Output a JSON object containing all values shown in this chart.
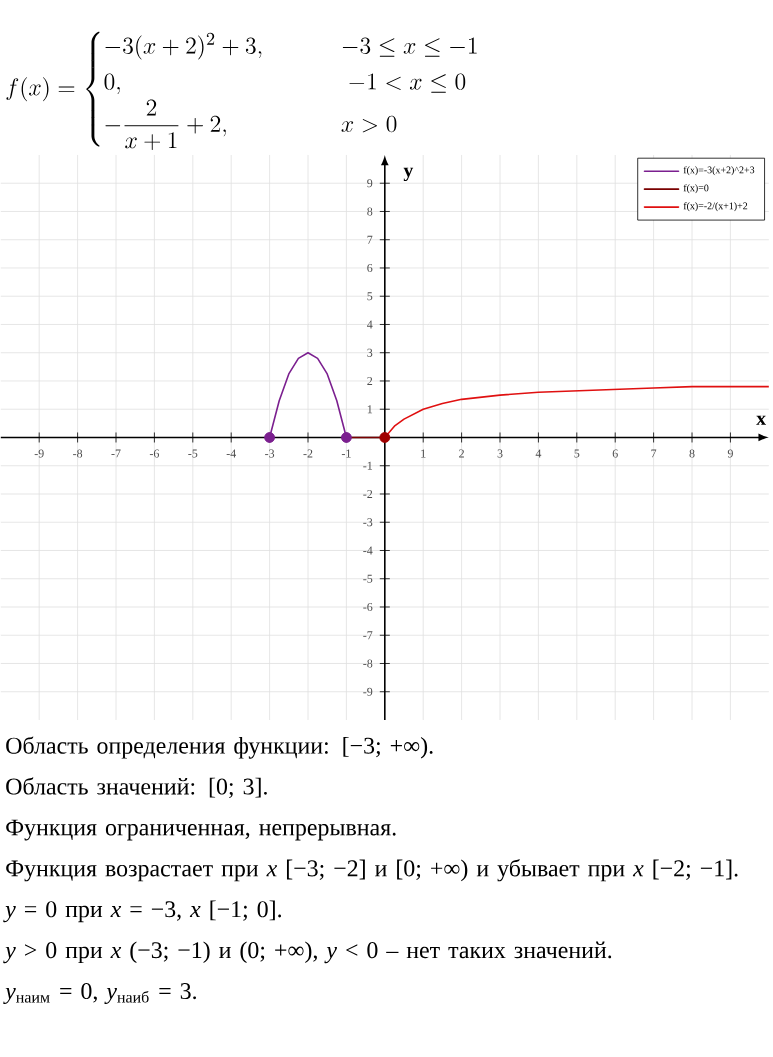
{
  "chart_data": {
    "type": "line",
    "title": "f(x)=\\begin{cases}-3(x+2)^2+3, & \\qquad -3\\le x\\le -1\\\\ 0, & \\qquad\\; -1<x\\le 0\\\\ -\\dfrac{2}{x+1}+2, & \\qquad x>0\\end{cases}",
    "xlabel": "x",
    "ylabel": "y",
    "xlim": [
      -10,
      10
    ],
    "ylim": [
      -10,
      10
    ],
    "xticks": [
      -9,
      -8,
      -7,
      -6,
      -5,
      -4,
      -3,
      -2,
      -1,
      1,
      2,
      3,
      4,
      5,
      6,
      7,
      8,
      9
    ],
    "yticks": [
      -9,
      -8,
      -7,
      -6,
      -5,
      -4,
      -3,
      -2,
      -1,
      1,
      2,
      3,
      4,
      5,
      6,
      7,
      8,
      9
    ],
    "grid": true,
    "legend": "top right",
    "series": [
      {
        "name": "f(x)=-3(x+2)^2+3",
        "color": "#7b1f8f",
        "x": [
          -3,
          -2.75,
          -2.5,
          -2.25,
          -2,
          -1.75,
          -1.5,
          -1.25,
          -1
        ],
        "values": [
          0,
          1.3,
          2.25,
          2.8,
          3,
          2.8,
          2.25,
          1.3,
          0
        ]
      },
      {
        "name": "f(x)=0",
        "color": "#7a0000",
        "x": [
          -1,
          0
        ],
        "values": [
          0,
          0
        ]
      },
      {
        "name": "f(x)=-2/(x+1)+2",
        "color": "#e01010",
        "x": [
          0,
          0.25,
          0.5,
          1,
          1.5,
          2,
          3,
          4,
          5,
          6,
          7,
          8,
          9,
          10
        ],
        "values": [
          0,
          0.4,
          0.65,
          1,
          1.2,
          1.35,
          1.5,
          1.6,
          1.65,
          1.7,
          1.75,
          1.8,
          1.8,
          1.8
        ]
      },
      {
        "type": "scatter",
        "marker": "circle",
        "color": "#7b1f8f",
        "x": [
          -3,
          -1
        ],
        "values": [
          0,
          0
        ]
      },
      {
        "type": "scatter",
        "marker": "circle",
        "color": "#a00000",
        "x": [
          0
        ],
        "values": [
          0
        ]
      }
    ],
    "annotations": [
      "Область определения функции: [−3; +∞).",
      "Область значений: [0; 3].",
      "Функция ограниченная, непрерывная.",
      "Функция возрастает при *x* [−3; −2] и [0; +∞) и убывает при *x* [−2; −1].",
      "*y* = 0 при *x* = −3, *x* [−1; 0].",
      "*y* > 0 при *x* (−3; −1) и (0; +∞),    *y* < 0 – нет таких значений.",
      "*y*$_{наим}$ = 0,    *y*$_{наиб}$ = 3."
    ]
  }
}
